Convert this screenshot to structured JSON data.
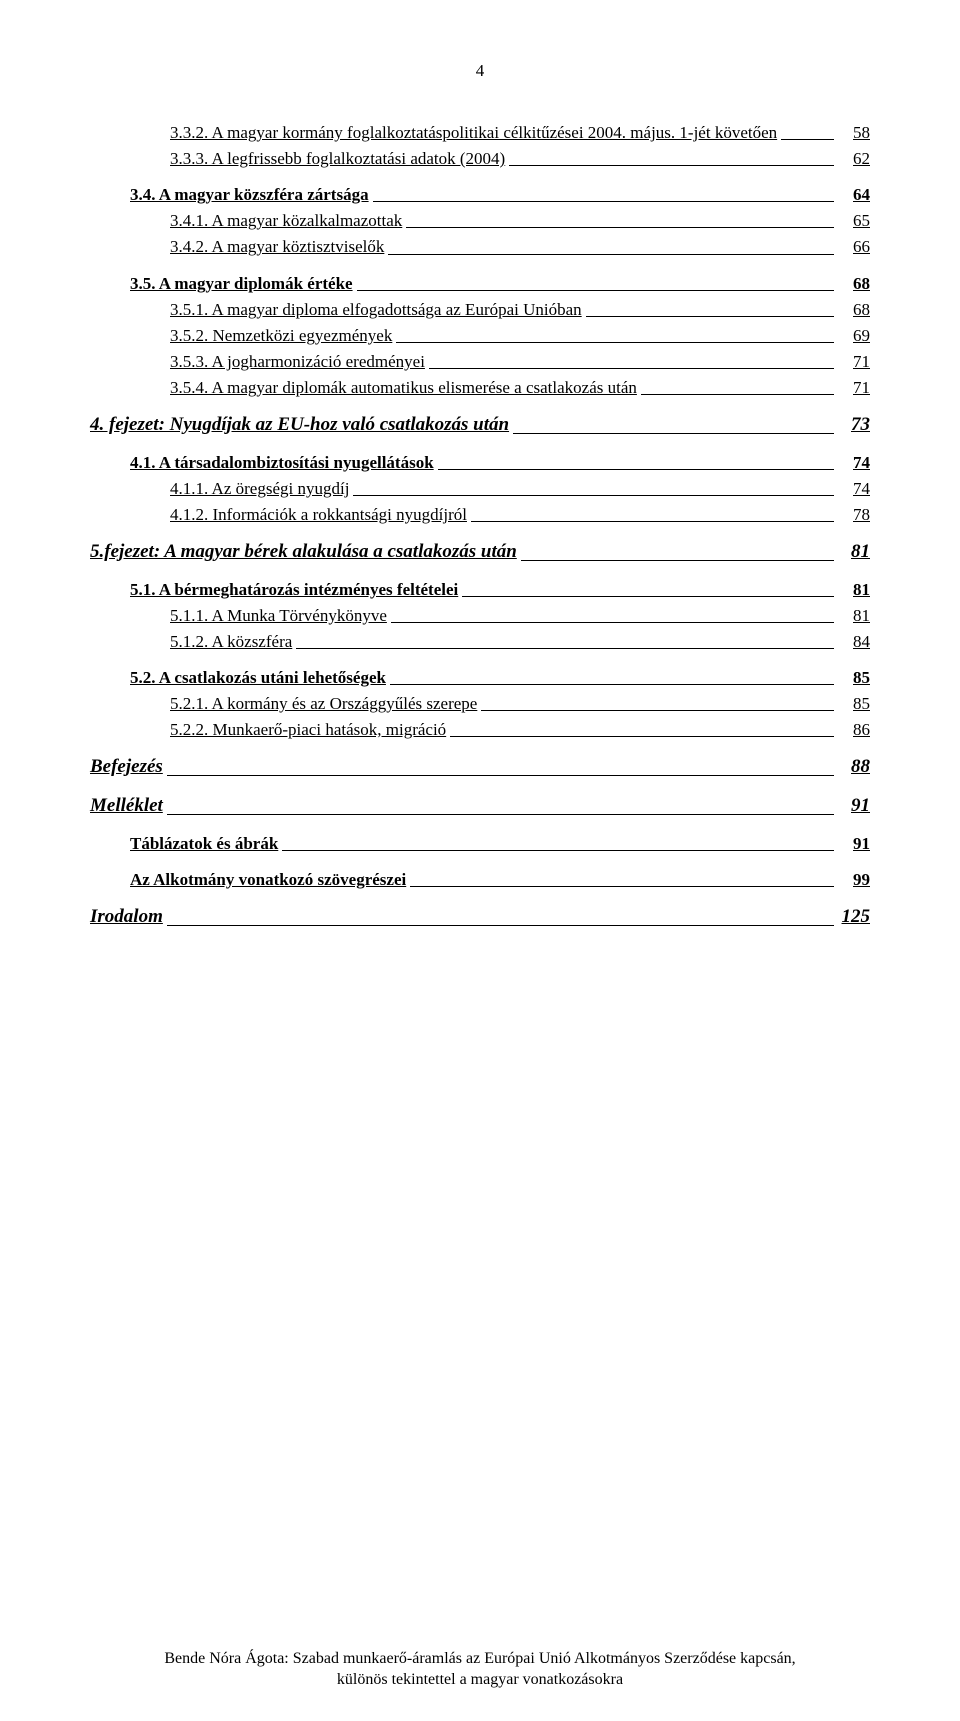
{
  "pageNumber": "4",
  "entries": [
    {
      "level": 3,
      "style": "sub",
      "title": "3.3.2. A magyar kormány foglalkoztatáspolitikai célkitűzései 2004. május. 1-jét követően",
      "page": "58",
      "before": ""
    },
    {
      "level": 3,
      "style": "sub",
      "title": "3.3.3. A legfrissebb foglalkoztatási adatok (2004)",
      "page": "62",
      "before": "sm"
    },
    {
      "level": 2,
      "style": "section",
      "title": "3.4. A magyar közszféra zártsága",
      "page": "64",
      "before": "md"
    },
    {
      "level": 3,
      "style": "sub",
      "title": "3.4.1. A magyar közalkalmazottak",
      "page": "65",
      "before": "sm"
    },
    {
      "level": 3,
      "style": "sub",
      "title": "3.4.2. A magyar köztisztviselők",
      "page": "66",
      "before": "sm"
    },
    {
      "level": 2,
      "style": "section",
      "title": "3.5. A magyar diplomák értéke",
      "page": "68",
      "before": "md"
    },
    {
      "level": 3,
      "style": "sub",
      "title": "3.5.1. A magyar diploma elfogadottsága az Európai Unióban",
      "page": "68",
      "before": "sm"
    },
    {
      "level": 3,
      "style": "sub",
      "title": "3.5.2. Nemzetközi egyezmények",
      "page": "69",
      "before": "sm"
    },
    {
      "level": 3,
      "style": "sub",
      "title": "3.5.3. A jogharmonizáció eredményei",
      "page": "71",
      "before": "sm"
    },
    {
      "level": 3,
      "style": "sub",
      "title": "3.5.4. A magyar diplomák automatikus elismerése a csatlakozás után",
      "page": "71",
      "before": "sm"
    },
    {
      "level": 1,
      "style": "heading",
      "title": "4. fejezet: Nyugdíjak az EU-hoz való csatlakozás után",
      "page": "73",
      "before": "md"
    },
    {
      "level": 2,
      "style": "section",
      "title": "4.1. A társadalombiztosítási nyugellátások",
      "page": "74",
      "before": "md"
    },
    {
      "level": 3,
      "style": "sub",
      "title": "4.1.1. Az öregségi nyugdíj",
      "page": "74",
      "before": "sm"
    },
    {
      "level": 3,
      "style": "sub",
      "title": "4.1.2. Információk a rokkantsági nyugdíjról",
      "page": "78",
      "before": "sm"
    },
    {
      "level": 1,
      "style": "heading",
      "title": "5.fejezet: A magyar bérek alakulása a csatlakozás után",
      "page": "81",
      "before": "md"
    },
    {
      "level": 2,
      "style": "section",
      "title": "5.1. A bérmeghatározás intézményes feltételei",
      "page": "81",
      "before": "md"
    },
    {
      "level": 3,
      "style": "sub",
      "title": "5.1.1. A Munka Törvénykönyve",
      "page": "81",
      "before": "sm"
    },
    {
      "level": 3,
      "style": "sub",
      "title": "5.1.2. A közszféra",
      "page": "84",
      "before": "sm"
    },
    {
      "level": 2,
      "style": "section",
      "title": "5.2. A csatlakozás utáni lehetőségek",
      "page": "85",
      "before": "md"
    },
    {
      "level": 3,
      "style": "sub",
      "title": "5.2.1. A kormány és az Országgyűlés szerepe",
      "page": "85",
      "before": "sm"
    },
    {
      "level": 3,
      "style": "sub",
      "title": "5.2.2. Munkaerő-piaci hatások, migráció",
      "page": "86",
      "before": "sm"
    },
    {
      "level": 1,
      "style": "heading",
      "title": "Befejezés",
      "page": "88",
      "before": "md"
    },
    {
      "level": 1,
      "style": "heading",
      "title": "Melléklet",
      "page": "91",
      "before": "md"
    },
    {
      "level": 2,
      "style": "section",
      "title": "Táblázatok és ábrák",
      "page": "91",
      "before": "md"
    },
    {
      "level": 2,
      "style": "section",
      "title": "Az Alkotmány vonatkozó szövegrészei",
      "page": "99",
      "before": "md"
    },
    {
      "level": 1,
      "style": "heading",
      "title": "Irodalom",
      "page": "125",
      "before": "md"
    }
  ],
  "footer": {
    "line1": "Bende Nóra Ágota: Szabad munkaerő-áramlás az Európai Unió Alkotmányos Szerződése kapcsán,",
    "line2": "különös tekintettel a magyar vonatkozásokra"
  }
}
